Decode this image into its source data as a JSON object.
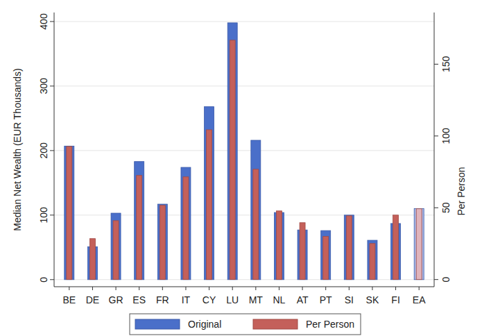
{
  "chart_data": {
    "type": "bar",
    "y_label": "Median Net Wealth (EUR Thousands)",
    "y2_label": "Per Person",
    "categories": [
      "BE",
      "DE",
      "GR",
      "ES",
      "FR",
      "IT",
      "CY",
      "LU",
      "MT",
      "NL",
      "AT",
      "PT",
      "SI",
      "SK",
      "FI",
      "EA"
    ],
    "series": [
      {
        "name": "Original",
        "color": "#4a6fc9",
        "colors": [
          "#4a6fc9",
          "#4a6fc9",
          "#4a6fc9",
          "#4a6fc9",
          "#4a6fc9",
          "#4a6fc9",
          "#4a6fc9",
          "#4a6fc9",
          "#4a6fc9",
          "#4a6fc9",
          "#4a6fc9",
          "#4a6fc9",
          "#4a6fc9",
          "#4a6fc9",
          "#4a6fc9",
          "#aab8e6"
        ],
        "values": [
          207,
          51,
          103,
          183,
          117,
          174,
          268,
          398,
          216,
          104,
          77,
          76,
          100,
          61,
          87,
          110
        ]
      },
      {
        "name": "Per Person",
        "color": "#c4605a",
        "axis": "y2",
        "colors": [
          "#c4605a",
          "#c4605a",
          "#c4605a",
          "#c4605a",
          "#c4605a",
          "#c4605a",
          "#c4605a",
          "#c4605a",
          "#c4605a",
          "#c4605a",
          "#c4605a",
          "#c4605a",
          "#c4605a",
          "#c4605a",
          "#c4605a",
          "#e0b4bc"
        ],
        "values": [
          92.7,
          28.5,
          41,
          72.5,
          51.7,
          71.5,
          104.3,
          166.7,
          76.8,
          47.8,
          39.6,
          30,
          44.4,
          25.1,
          44.9,
          49.3
        ]
      }
    ],
    "ylim": [
      -11,
      414
    ],
    "yticks": [
      0,
      100,
      200,
      300,
      400
    ],
    "y2lim": [
      -5,
      186
    ],
    "y2ticks": [
      0,
      50,
      100,
      150
    ],
    "grid": true,
    "legend": "bottom"
  }
}
